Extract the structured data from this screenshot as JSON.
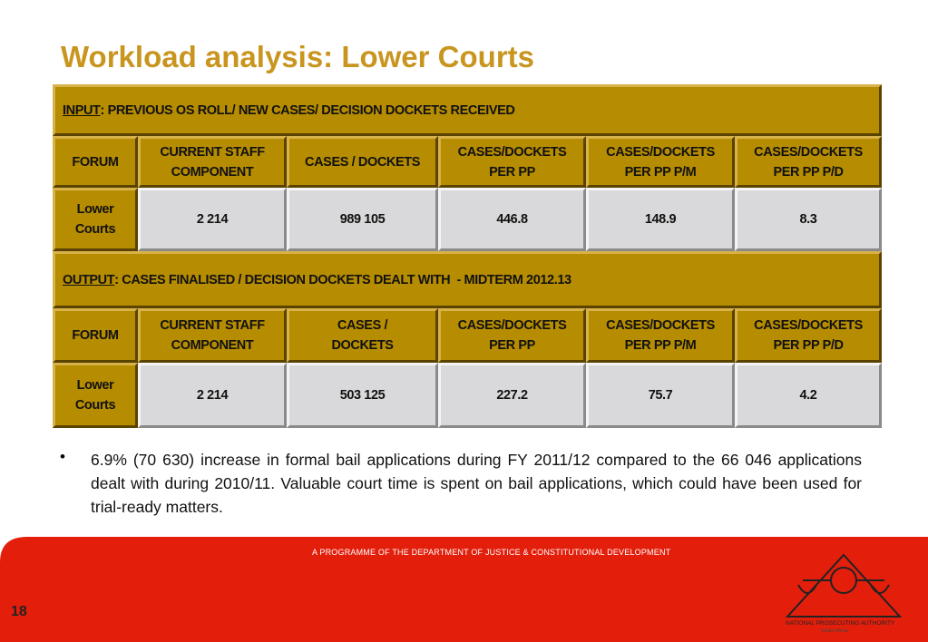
{
  "title": "Workload analysis: Lower Courts",
  "tables": [
    {
      "section_label": "INPUT",
      "section_text": ": PREVIOUS OS ROLL/ NEW CASES/ DECISION DOCKETS RECEIVED",
      "header": [
        "FORUM",
        "CURRENT STAFF COMPONENT",
        "CASES / DOCKETS",
        "CASES/DOCKETS PER PP",
        "CASES/DOCKETS PER PP P/M",
        "CASES/DOCKETS PER PP P/D"
      ],
      "row": [
        "Lower Courts",
        "2 214",
        "989 105",
        "446.8",
        "148.9",
        "8.3"
      ]
    },
    {
      "section_label": "OUTPUT",
      "section_text": ": CASES FINALISED / DECISION DOCKETS DEALT WITH  - MIDTERM 2012.13",
      "header": [
        "FORUM",
        "CURRENT STAFF COMPONENT",
        "CASES / DOCKETS",
        "CASES/DOCKETS PER PP",
        "CASES/DOCKETS PER PP P/M",
        "CASES/DOCKETS PER PP P/D"
      ],
      "row": [
        "Lower Courts",
        "2 214",
        "503 125",
        "227.2",
        "75.7",
        "4.2"
      ]
    }
  ],
  "bullet": "6.9% (70 630) increase in formal bail applications during FY 2011/12 compared to the 66 046 applications dealt with during 2010/11. Valuable court time is spent on bail applications, which could have been used for trial-ready matters.",
  "footer": {
    "programme": "A PROGRAMME OF THE DEPARTMENT OF JUSTICE & CONSTITUTIONAL DEVELOPMENT",
    "page": "18",
    "logo_name": "NATIONAL PROSECUTING AUTHORITY",
    "logo_country": "South Africa"
  }
}
